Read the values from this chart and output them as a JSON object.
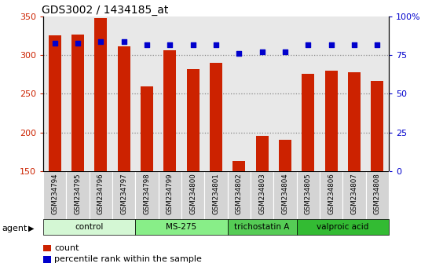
{
  "title": "GDS3002 / 1434185_at",
  "samples": [
    "GSM234794",
    "GSM234795",
    "GSM234796",
    "GSM234797",
    "GSM234798",
    "GSM234799",
    "GSM234800",
    "GSM234801",
    "GSM234802",
    "GSM234803",
    "GSM234804",
    "GSM234805",
    "GSM234806",
    "GSM234807",
    "GSM234808"
  ],
  "counts": [
    326,
    327,
    348,
    312,
    260,
    306,
    282,
    290,
    163,
    196,
    190,
    276,
    280,
    278,
    267
  ],
  "percentiles": [
    83,
    83,
    84,
    84,
    82,
    82,
    82,
    82,
    76,
    77,
    77,
    82,
    82,
    82,
    82
  ],
  "bar_color": "#cc2200",
  "dot_color": "#0000cc",
  "ylim_left": [
    150,
    350
  ],
  "ylim_right": [
    0,
    100
  ],
  "yticks_left": [
    150,
    200,
    250,
    300,
    350
  ],
  "yticks_right": [
    0,
    25,
    50,
    75,
    100
  ],
  "yticklabels_right": [
    "0",
    "25",
    "50",
    "75",
    "100%"
  ],
  "groups": [
    {
      "label": "control",
      "start": 0,
      "end": 3,
      "color": "#d4f7d4"
    },
    {
      "label": "MS-275",
      "start": 4,
      "end": 7,
      "color": "#88ee88"
    },
    {
      "label": "trichostatin A",
      "start": 8,
      "end": 10,
      "color": "#55cc55"
    },
    {
      "label": "valproic acid",
      "start": 11,
      "end": 14,
      "color": "#33bb33"
    }
  ],
  "grid_dotted_at": [
    200,
    250,
    300
  ],
  "bar_width": 0.55,
  "background_axes": "#e8e8e8",
  "background_fig": "#ffffff",
  "left_tick_color": "#cc2200",
  "right_tick_color": "#0000cc"
}
